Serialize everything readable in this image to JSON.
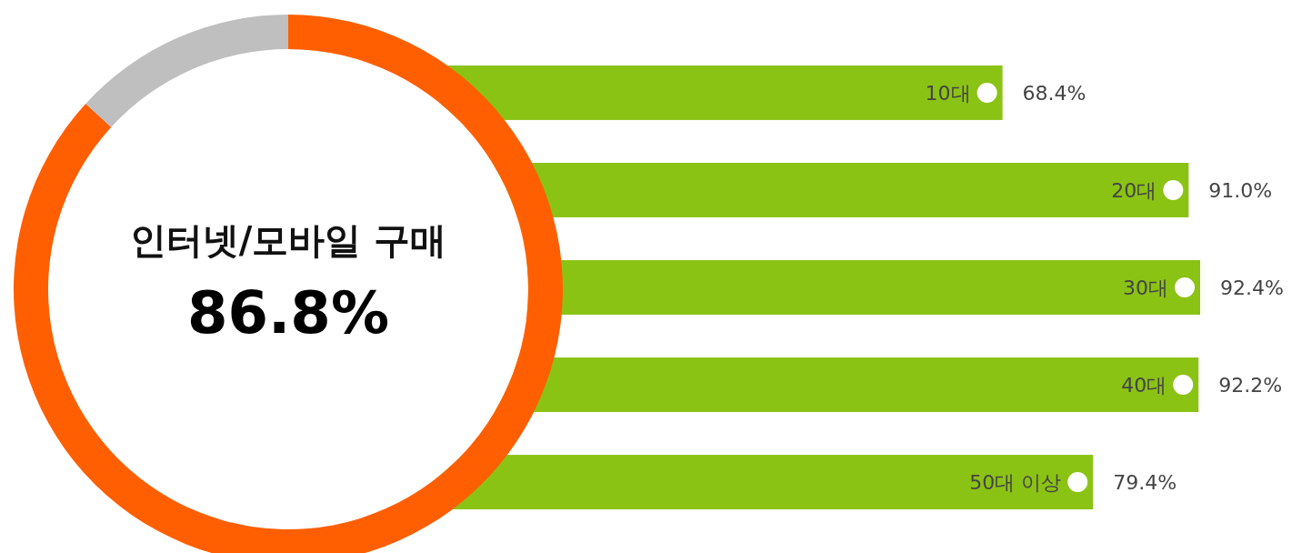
{
  "chart_data": [
    {
      "type": "donut",
      "title": "인터넷/모바일 구매",
      "categories": [
        null,
        null
      ],
      "values": [
        86.8,
        13.2
      ],
      "colors": [
        "#ff5f00",
        "#bfbfbf"
      ],
      "value_labels": [
        "86.8%",
        null
      ]
    },
    {
      "type": "bar",
      "orientation": "horizontal",
      "categories": [
        "10대",
        "20대",
        "30대",
        "40대",
        "50대 이상"
      ],
      "values": [
        68.4,
        91.0,
        92.4,
        92.2,
        79.4
      ],
      "color": "#8bc314",
      "value_labels": [
        "68.4%",
        "91.0%",
        "92.4%",
        "92.2%",
        "79.4%"
      ]
    }
  ]
}
